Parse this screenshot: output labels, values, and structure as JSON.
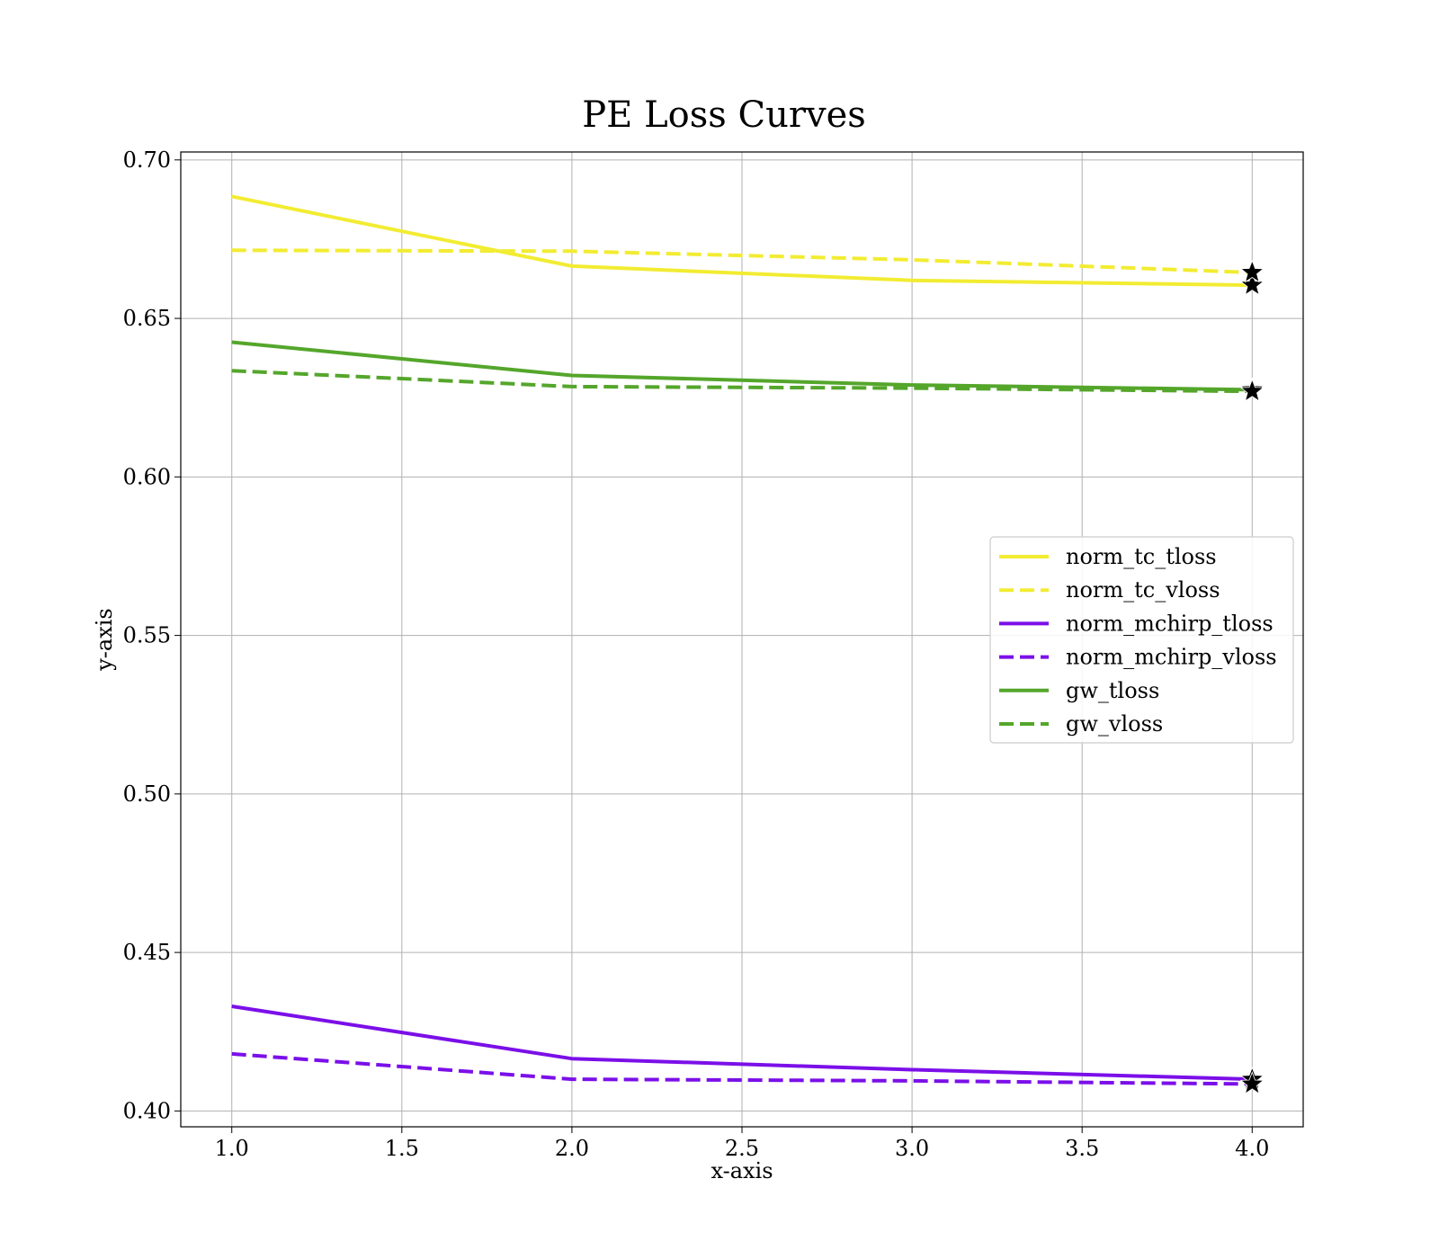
{
  "chart_data": {
    "type": "line",
    "title": "PE Loss Curves",
    "xlabel": "x-axis",
    "ylabel": "y-axis",
    "xlim": [
      0.85,
      4.15
    ],
    "ylim": [
      0.395,
      0.7025
    ],
    "x_ticks": [
      1.0,
      1.5,
      2.0,
      2.5,
      3.0,
      3.5,
      4.0
    ],
    "y_ticks": [
      0.4,
      0.45,
      0.5,
      0.55,
      0.6,
      0.65,
      0.7
    ],
    "x_tick_labels": [
      "1.0",
      "1.5",
      "2.0",
      "2.5",
      "3.0",
      "3.5",
      "4.0"
    ],
    "y_tick_labels": [
      "0.40",
      "0.45",
      "0.50",
      "0.55",
      "0.60",
      "0.65",
      "0.70"
    ],
    "grid": true,
    "legend_position": "center-right",
    "x": [
      1,
      2,
      3,
      4
    ],
    "series": [
      {
        "name": "norm_tc_tloss",
        "values": [
          0.6885,
          0.6665,
          0.662,
          0.6605
        ],
        "color": "#f2ec32",
        "dash": "solid"
      },
      {
        "name": "norm_tc_vloss",
        "values": [
          0.6715,
          0.6712,
          0.6685,
          0.6645
        ],
        "color": "#f2ec32",
        "dash": "dashed"
      },
      {
        "name": "norm_mchirp_tloss",
        "values": [
          0.433,
          0.4165,
          0.413,
          0.41
        ],
        "color": "#7b0fe8",
        "dash": "solid"
      },
      {
        "name": "norm_mchirp_vloss",
        "values": [
          0.418,
          0.41,
          0.4095,
          0.4085
        ],
        "color": "#7b0fe8",
        "dash": "dashed"
      },
      {
        "name": "gw_tloss",
        "values": [
          0.6425,
          0.632,
          0.629,
          0.6275
        ],
        "color": "#54a62b",
        "dash": "solid"
      },
      {
        "name": "gw_vloss",
        "values": [
          0.6335,
          0.6285,
          0.628,
          0.627
        ],
        "color": "#54a62b",
        "dash": "dashed"
      }
    ],
    "markers": {
      "shape": "star",
      "color": "#000000",
      "at": "last-point"
    }
  }
}
